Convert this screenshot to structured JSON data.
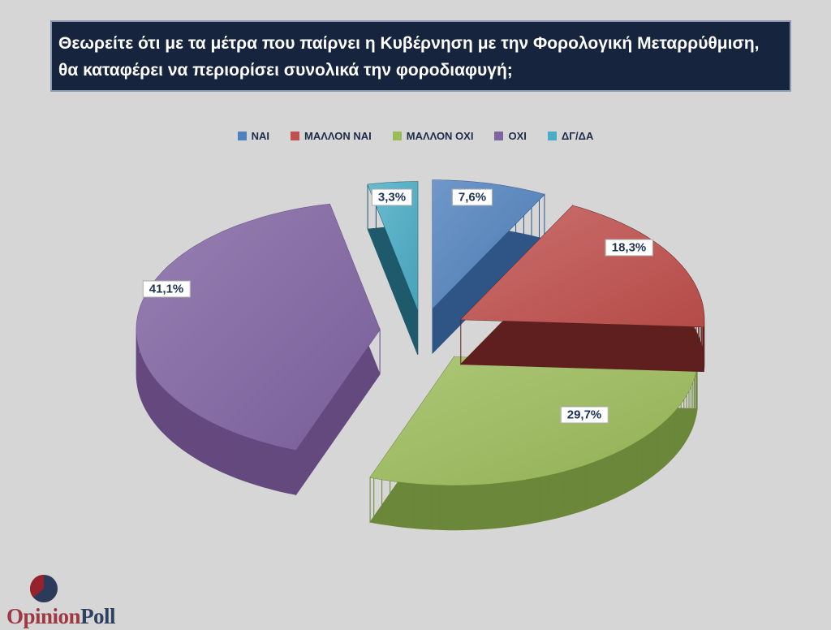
{
  "title": {
    "text": "Θεωρείτε ότι με τα μέτρα που παίρνει η Κυβέρνηση με την Φορολογική Μεταρρύθμιση, θα καταφέρει να περιορίσει συνολικά την φοροδιαφυγή;"
  },
  "chart_data": {
    "type": "pie",
    "style": "3d-exploded",
    "start_angle_deg": 0,
    "direction": "clockwise",
    "legend_position": "top",
    "labels": [
      "ΝΑΙ",
      "ΜΑΛΛΟΝ ΝΑΙ",
      "ΜΑΛΛΟΝ ΟΧΙ",
      "ΟΧΙ",
      "ΔΓ/ΔΑ"
    ],
    "values": [
      7.6,
      18.3,
      29.7,
      41.1,
      3.3
    ],
    "value_labels": [
      "7,6%",
      "18,3%",
      "29,7%",
      "41,1%",
      "3,3%"
    ],
    "colors": [
      "#4F81BD",
      "#C0504D",
      "#9BBB59",
      "#8064A2",
      "#4BACC6"
    ],
    "side_colors": [
      "#2F5586",
      "#5E1F1E",
      "#6B8739",
      "#64497F",
      "#1E5A6C"
    ]
  },
  "logo": {
    "brand_first": "Opinion",
    "brand_second": "Poll",
    "brand_first_color": "#9e3842",
    "brand_second_color": "#2e4160",
    "mark_circle_color": "#2c3a5c",
    "mark_wedge_color": "#96222e"
  },
  "colors": {
    "background": "#d6d6d7",
    "title_bar_bg": "#16243e",
    "title_text": "#ffffff",
    "legend_text": "#1f2b47",
    "label_text": "#1c3357"
  }
}
